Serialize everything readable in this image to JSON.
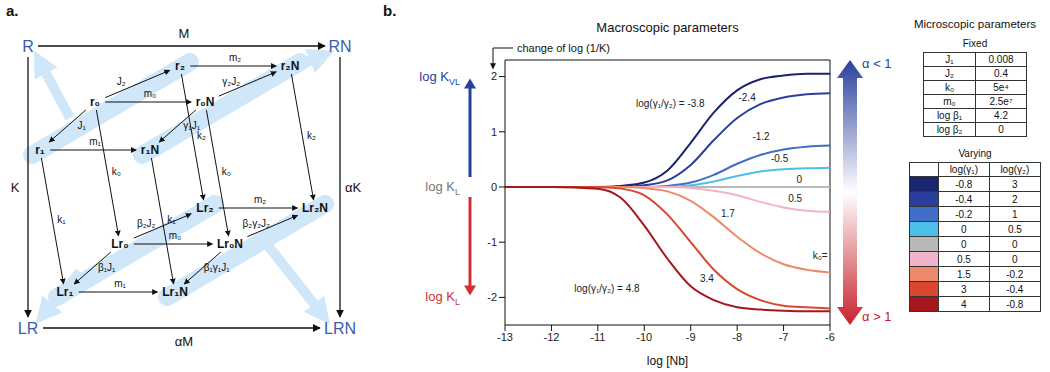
{
  "panel_labels": [
    "a.",
    "b."
  ],
  "chart_data": {
    "type": "line",
    "title": "Macroscopic parameters",
    "x_label": "log [Nb]",
    "y_annotation": "change of log (1/K)",
    "y_levels": [
      {
        "label": "log K",
        "sub": "VL",
        "y": 2,
        "color": "#2a3f9c"
      },
      {
        "label": "log K",
        "sub": "L",
        "y": 0,
        "color": "#777777"
      },
      {
        "label": "log K",
        "sub": "L",
        "y": -2,
        "color": "#d0303a"
      }
    ],
    "alpha_top": "α < 1",
    "alpha_bottom": "α > 1",
    "note": "k₀=",
    "x": [
      -13,
      -12,
      -11,
      -10.5,
      -10,
      -9.5,
      -9,
      -8.5,
      -8,
      -7.5,
      -7,
      -6.5,
      -6
    ],
    "xlim": [
      -13,
      -6
    ],
    "xticks": [
      -13,
      -12,
      -11,
      -10,
      -9,
      -8,
      -7,
      -6
    ],
    "ylim": [
      -2.5,
      2.3
    ],
    "yticks": [
      -2,
      -1,
      0,
      1,
      2
    ],
    "series": [
      {
        "name": "log(γ₁/γ₂) = -3.8",
        "color": "#1b2470",
        "values": [
          0,
          0,
          0,
          0.02,
          0.08,
          0.3,
          0.8,
          1.35,
          1.75,
          1.95,
          2.02,
          2.05,
          2.05
        ]
      },
      {
        "name": "-2.4",
        "color": "#2a3f9c",
        "values": [
          0,
          0,
          0,
          0,
          0.03,
          0.12,
          0.4,
          0.85,
          1.25,
          1.5,
          1.62,
          1.68,
          1.7
        ]
      },
      {
        "name": "-1.2",
        "color": "#3f6fc6",
        "values": [
          0,
          0,
          0,
          0,
          0,
          0.02,
          0.08,
          0.22,
          0.42,
          0.58,
          0.68,
          0.73,
          0.75
        ]
      },
      {
        "name": "-0.5",
        "color": "#4cc0ea",
        "values": [
          0,
          0,
          0,
          0,
          0,
          0,
          0.03,
          0.1,
          0.2,
          0.28,
          0.32,
          0.34,
          0.35
        ]
      },
      {
        "name": "0",
        "color": "#b8b8b8",
        "values": [
          0,
          0,
          0,
          0,
          0,
          0,
          0,
          0,
          0,
          0,
          0,
          0,
          0
        ]
      },
      {
        "name": "0.5",
        "color": "#f0b3c8",
        "values": [
          0,
          0,
          0,
          0,
          0,
          0,
          -0.02,
          -0.07,
          -0.15,
          -0.27,
          -0.37,
          -0.43,
          -0.45
        ]
      },
      {
        "name": "1.7",
        "color": "#ee8a6c",
        "values": [
          0,
          0,
          0,
          0,
          -0.02,
          -0.08,
          -0.25,
          -0.55,
          -0.9,
          -1.2,
          -1.4,
          -1.5,
          -1.55
        ]
      },
      {
        "name": "3.4",
        "color": "#d9482e",
        "values": [
          0,
          0,
          0,
          -0.03,
          -0.15,
          -0.5,
          -1.0,
          -1.5,
          -1.85,
          -2.05,
          -2.15,
          -2.18,
          -2.2
        ]
      },
      {
        "name": "log(γ₁/γ₂) = 4.8",
        "color": "#a5161d",
        "values": [
          0,
          0,
          -0.03,
          -0.2,
          -0.7,
          -1.3,
          -1.8,
          -2.05,
          -2.18,
          -2.22,
          -2.24,
          -2.25,
          -2.25
        ]
      }
    ]
  },
  "diagram": {
    "corners": [
      "R",
      "RN",
      "LR",
      "LRN"
    ],
    "outer_edges": [
      {
        "from": "R",
        "to": "RN",
        "label": "M"
      },
      {
        "from": "R",
        "to": "LR",
        "label": "K"
      },
      {
        "from": "RN",
        "to": "LRN",
        "label": "αK"
      },
      {
        "from": "LR",
        "to": "LRN",
        "label": "αM"
      }
    ],
    "nodes": [
      "r₀",
      "r₁",
      "r₂",
      "r₀N",
      "r₁N",
      "r₂N",
      "Lr₀",
      "Lr₁",
      "Lr₂",
      "Lr₀N",
      "Lr₁N",
      "Lr₂N"
    ],
    "edges": [
      {
        "from": "r₀",
        "to": "r₁",
        "label": "J₁"
      },
      {
        "from": "r₀",
        "to": "r₂",
        "label": "J₂"
      },
      {
        "from": "r₀",
        "to": "r₀N",
        "label": "m₀"
      },
      {
        "from": "r₁",
        "to": "r₁N",
        "label": "m₁"
      },
      {
        "from": "r₂",
        "to": "r₂N",
        "label": "m₂"
      },
      {
        "from": "r₀N",
        "to": "r₁N",
        "label": "γ₁J₁"
      },
      {
        "from": "r₀N",
        "to": "r₂N",
        "label": "γ₂J₂"
      },
      {
        "from": "r₀",
        "to": "Lr₀",
        "label": "k₀"
      },
      {
        "from": "r₁",
        "to": "Lr₁",
        "label": "k₁"
      },
      {
        "from": "r₂",
        "to": "Lr₂",
        "label": "k₂"
      },
      {
        "from": "r₀N",
        "to": "Lr₀N",
        "label": "k₀"
      },
      {
        "from": "r₁N",
        "to": "Lr₁N",
        "label": "k₁"
      },
      {
        "from": "r₂N",
        "to": "Lr₂N",
        "label": "k₂"
      },
      {
        "from": "Lr₀",
        "to": "Lr₁",
        "label": "β₁J₁"
      },
      {
        "from": "Lr₀",
        "to": "Lr₂",
        "label": "β₂J₂"
      },
      {
        "from": "Lr₀",
        "to": "Lr₀N",
        "label": "m₀"
      },
      {
        "from": "Lr₁",
        "to": "Lr₁N",
        "label": "m₁"
      },
      {
        "from": "Lr₂",
        "to": "Lr₂N",
        "label": "m₂"
      },
      {
        "from": "Lr₀N",
        "to": "Lr₁N",
        "label": "β₁γ₁J₁"
      },
      {
        "from": "Lr₀N",
        "to": "Lr₂N",
        "label": "β₂γ₂J₂"
      }
    ]
  },
  "tables": {
    "title": "Microscopic parameters",
    "fixed": {
      "title": "Fixed",
      "rows": [
        [
          "J₁",
          "0.008"
        ],
        [
          "J₂",
          "0.4"
        ],
        [
          "k₀",
          "5e⁴"
        ],
        [
          "m₀",
          "2.5e⁷"
        ],
        [
          "log β₁",
          "4.2"
        ],
        [
          "log β₂",
          "0"
        ]
      ]
    },
    "varying": {
      "title": "Varying",
      "header": [
        "log(γ₁)",
        "log(γ₂)"
      ],
      "colors": [
        "#1b2470",
        "#2a3f9c",
        "#3f6fc6",
        "#4cc0ea",
        "#b8b8b8",
        "#f0b3c8",
        "#ee8a6c",
        "#d9482e",
        "#a5161d"
      ],
      "rows": [
        [
          -0.8,
          3
        ],
        [
          -0.4,
          2
        ],
        [
          -0.2,
          1
        ],
        [
          0,
          0.5
        ],
        [
          0,
          0
        ],
        [
          0.5,
          0
        ],
        [
          1.5,
          -0.2
        ],
        [
          3,
          -0.4
        ],
        [
          4,
          -0.8
        ]
      ]
    }
  }
}
